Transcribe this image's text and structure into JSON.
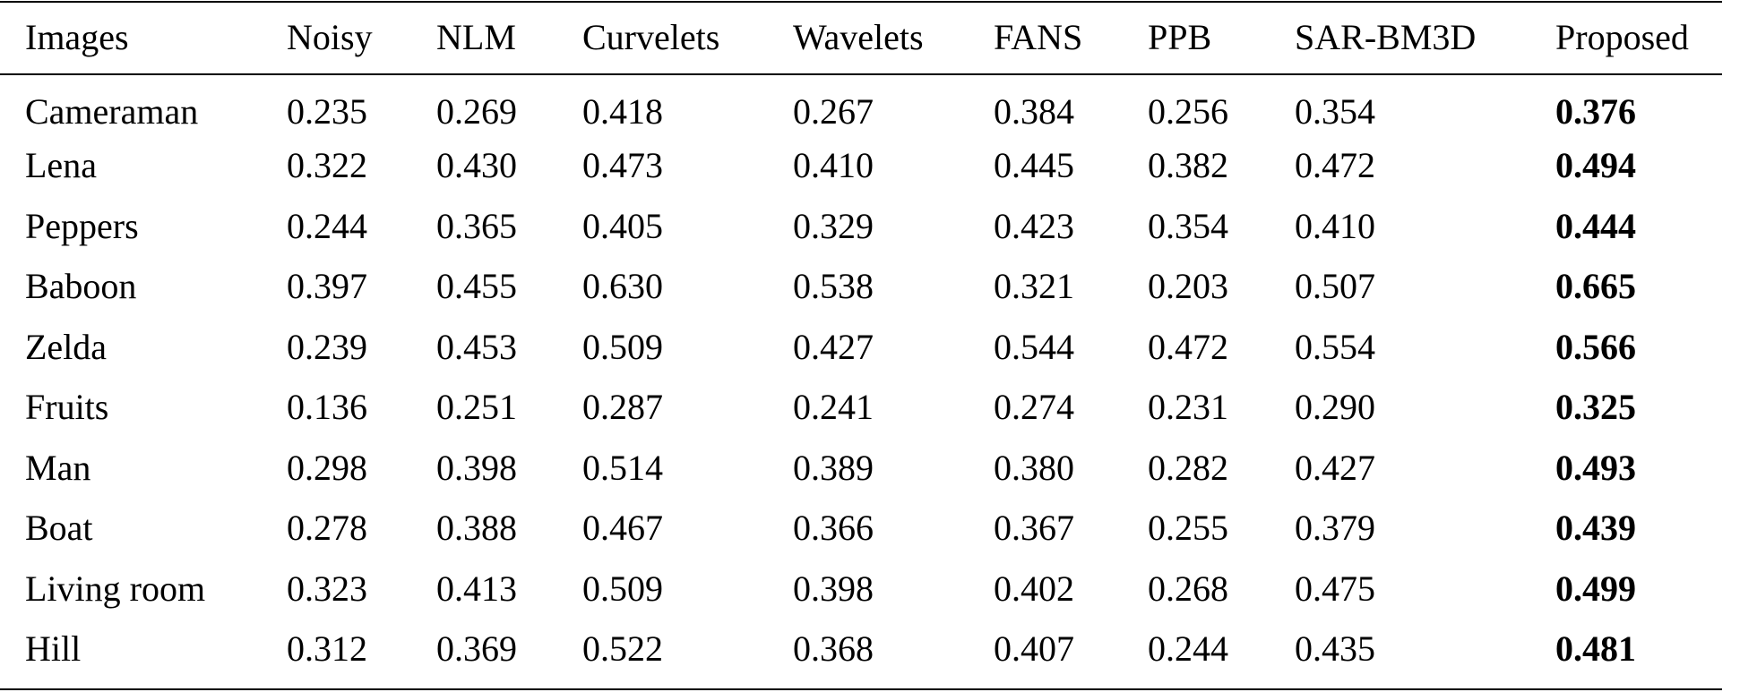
{
  "table": {
    "columns": [
      "Images",
      "Noisy",
      "NLM",
      "Curvelets",
      "Wavelets",
      "FANS",
      "PPB",
      "SAR-BM3D",
      "Proposed"
    ],
    "rows": [
      {
        "image": "Cameraman",
        "values": [
          "0.235",
          "0.269",
          "0.418",
          "0.267",
          "0.384",
          "0.256",
          "0.354",
          "0.376"
        ]
      },
      {
        "image": "Lena",
        "values": [
          "0.322",
          "0.430",
          "0.473",
          "0.410",
          "0.445",
          "0.382",
          "0.472",
          "0.494"
        ]
      },
      {
        "image": "Peppers",
        "values": [
          "0.244",
          "0.365",
          "0.405",
          "0.329",
          "0.423",
          "0.354",
          "0.410",
          "0.444"
        ]
      },
      {
        "image": "Baboon",
        "values": [
          "0.397",
          "0.455",
          "0.630",
          "0.538",
          "0.321",
          "0.203",
          "0.507",
          "0.665"
        ]
      },
      {
        "image": "Zelda",
        "values": [
          "0.239",
          "0.453",
          "0.509",
          "0.427",
          "0.544",
          "0.472",
          "0.554",
          "0.566"
        ]
      },
      {
        "image": "Fruits",
        "values": [
          "0.136",
          "0.251",
          "0.287",
          "0.241",
          "0.274",
          "0.231",
          "0.290",
          "0.325"
        ]
      },
      {
        "image": "Man",
        "values": [
          "0.298",
          "0.398",
          "0.514",
          "0.389",
          "0.380",
          "0.282",
          "0.427",
          "0.493"
        ]
      },
      {
        "image": "Boat",
        "values": [
          "0.278",
          "0.388",
          "0.467",
          "0.366",
          "0.367",
          "0.255",
          "0.379",
          "0.439"
        ]
      },
      {
        "image": "Living room",
        "values": [
          "0.323",
          "0.413",
          "0.509",
          "0.398",
          "0.402",
          "0.268",
          "0.475",
          "0.499"
        ]
      },
      {
        "image": "Hill",
        "values": [
          "0.312",
          "0.369",
          "0.522",
          "0.368",
          "0.407",
          "0.244",
          "0.435",
          "0.481"
        ]
      }
    ]
  }
}
